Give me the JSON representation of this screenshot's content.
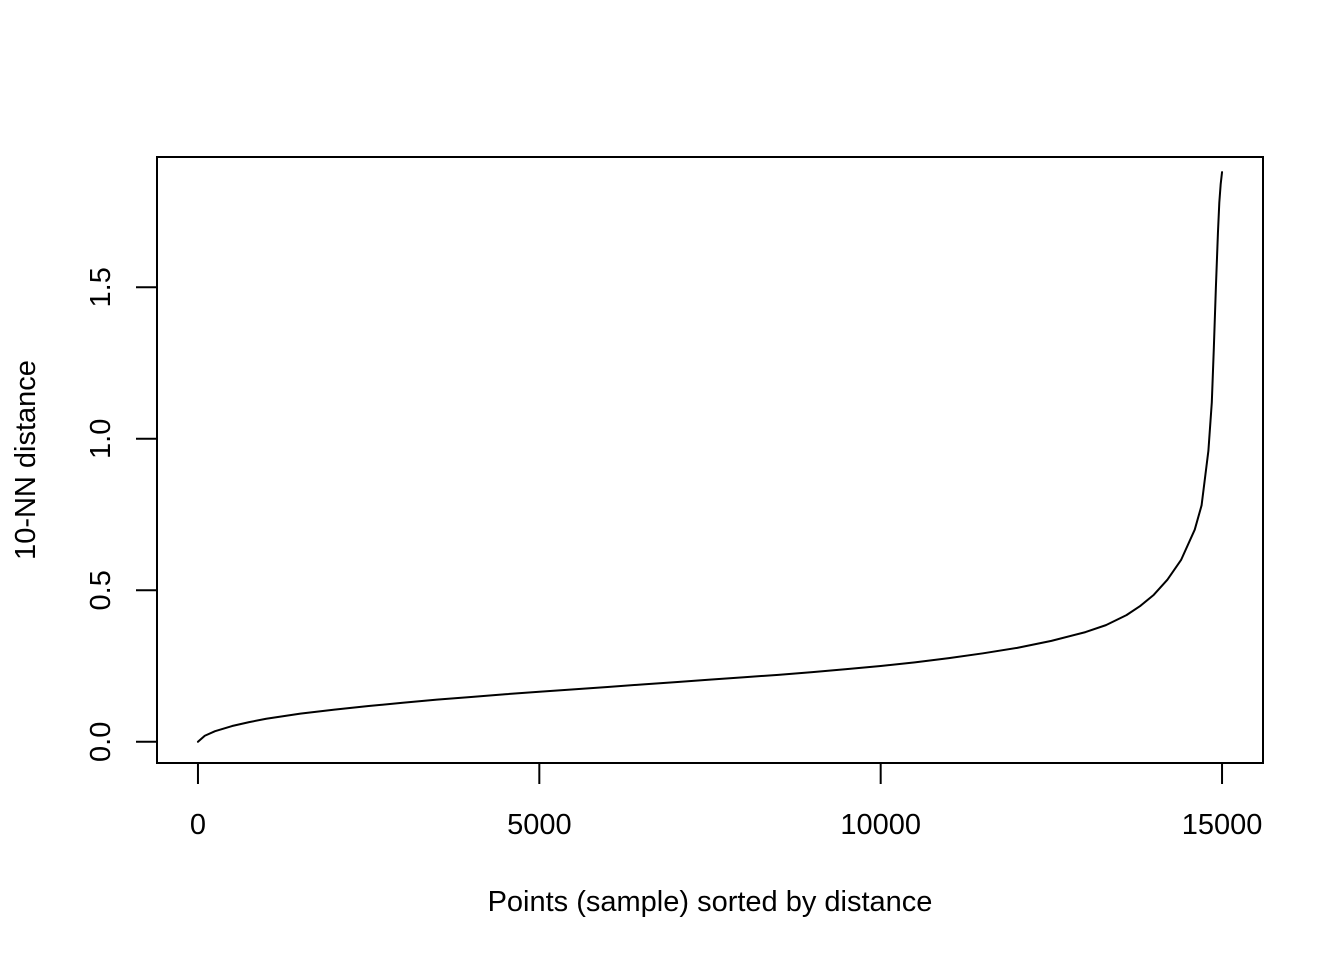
{
  "chart_data": {
    "type": "line",
    "title": "",
    "xlabel": "Points (sample) sorted by distance",
    "ylabel": "10-NN distance",
    "xlim": [
      -600,
      15600
    ],
    "ylim": [
      -0.07,
      1.93
    ],
    "x_ticks": [
      0,
      5000,
      10000,
      15000
    ],
    "x_tick_labels": [
      "0",
      "5000",
      "10000",
      "15000"
    ],
    "y_ticks": [
      0.0,
      0.5,
      1.0,
      1.5
    ],
    "y_tick_labels": [
      "0.0",
      "0.5",
      "1.0",
      "1.5"
    ],
    "grid": false,
    "legend": "none",
    "series": [
      {
        "name": "10-NN distance",
        "color": "#000000",
        "x": [
          0,
          100,
          250,
          500,
          750,
          1000,
          1500,
          2000,
          2500,
          3000,
          3500,
          4000,
          4500,
          5000,
          5500,
          6000,
          6500,
          7000,
          7500,
          8000,
          8500,
          9000,
          9500,
          10000,
          10500,
          11000,
          11500,
          12000,
          12500,
          13000,
          13300,
          13600,
          13800,
          14000,
          14200,
          14400,
          14600,
          14700,
          14800,
          14850,
          14880,
          14910,
          14940,
          14960,
          14980,
          15000
        ],
        "y": [
          0.0,
          0.02,
          0.035,
          0.052,
          0.065,
          0.076,
          0.093,
          0.106,
          0.118,
          0.129,
          0.139,
          0.148,
          0.157,
          0.165,
          0.173,
          0.181,
          0.189,
          0.197,
          0.205,
          0.213,
          0.221,
          0.23,
          0.24,
          0.25,
          0.262,
          0.276,
          0.292,
          0.31,
          0.333,
          0.362,
          0.385,
          0.418,
          0.448,
          0.485,
          0.535,
          0.6,
          0.7,
          0.78,
          0.96,
          1.12,
          1.3,
          1.5,
          1.68,
          1.78,
          1.84,
          1.88
        ]
      }
    ]
  }
}
